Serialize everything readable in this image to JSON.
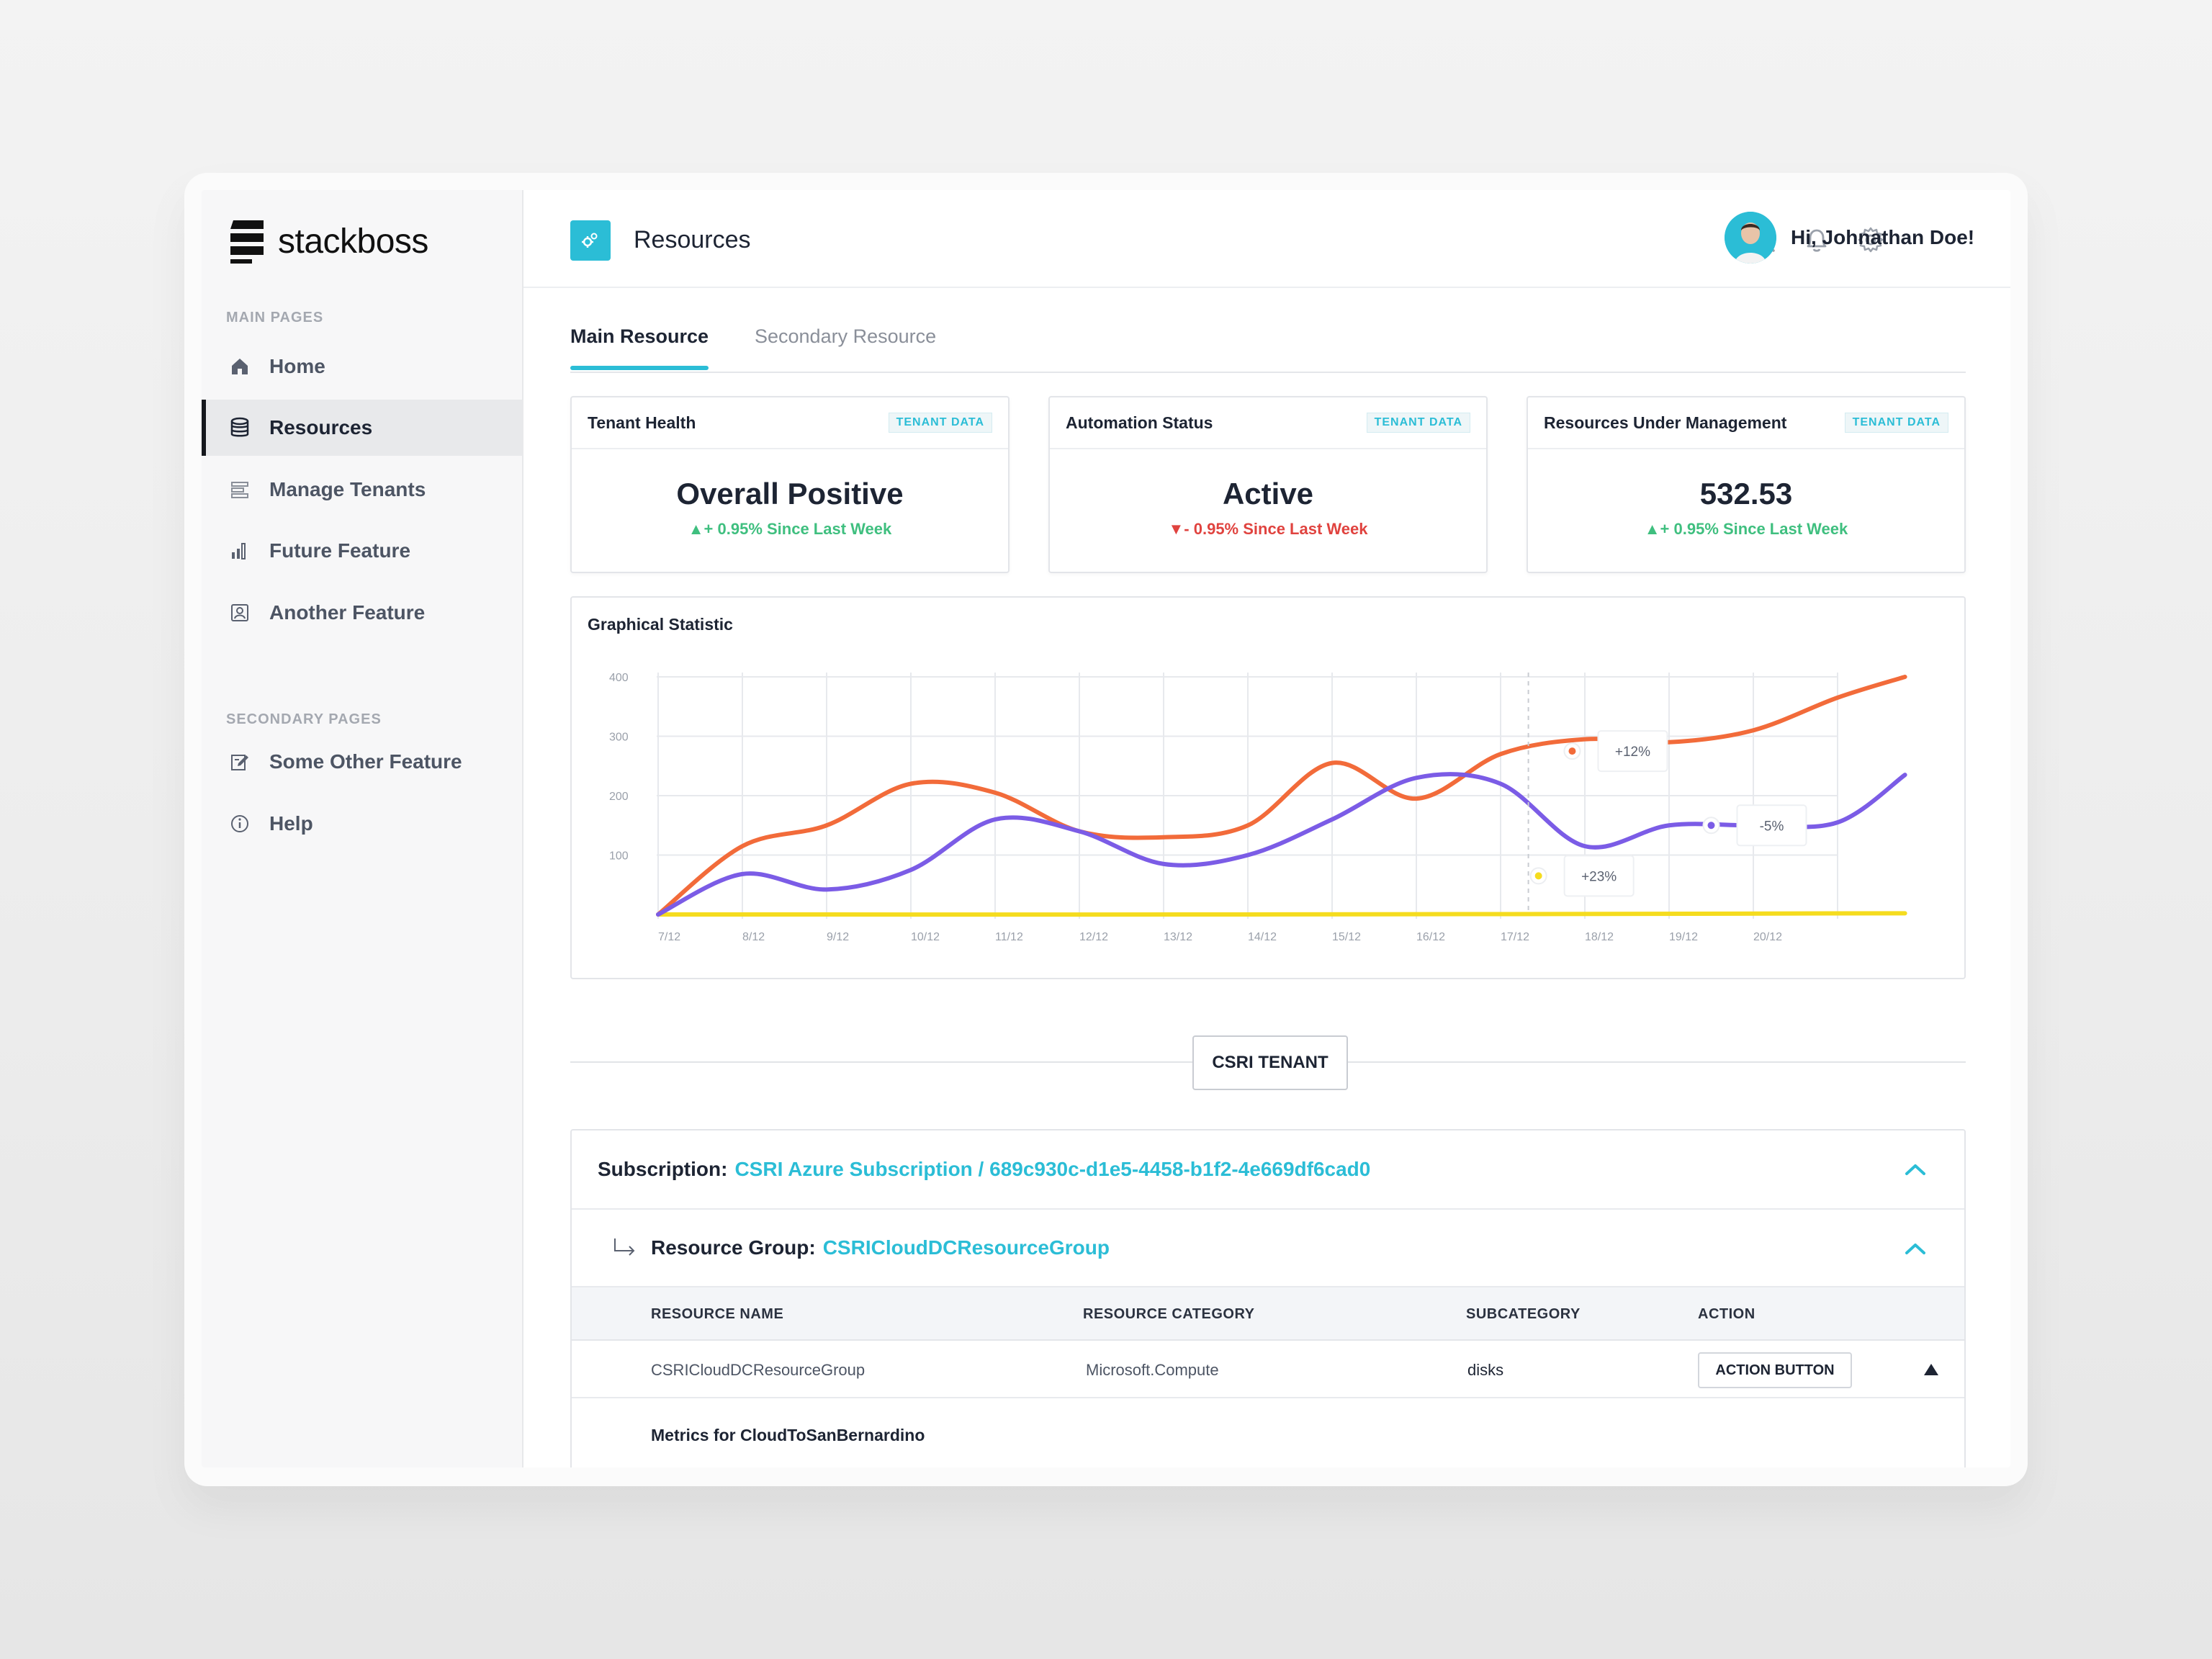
{
  "app": {
    "logo_text": "stackboss",
    "accent_color": "#2bbdd6"
  },
  "sidebar": {
    "main_label": "MAIN PAGES",
    "main_items": [
      {
        "label": "Home",
        "icon": "home-icon"
      },
      {
        "label": "Resources",
        "icon": "database-icon",
        "active": true
      },
      {
        "label": "Manage Tenants",
        "icon": "list-icon"
      },
      {
        "label": "Future Feature",
        "icon": "bar-chart-icon"
      },
      {
        "label": "Another Feature",
        "icon": "contact-card-icon"
      }
    ],
    "secondary_label": "SECONDARY PAGES",
    "secondary_items": [
      {
        "label": "Some Other Feature",
        "icon": "edit-icon"
      },
      {
        "label": "Help",
        "icon": "info-icon"
      }
    ]
  },
  "header": {
    "title": "Resources",
    "greeting": "Hi, Johnathan Doe!"
  },
  "tabs": [
    {
      "label": "Main Resource",
      "active": true
    },
    {
      "label": "Secondary Resource"
    }
  ],
  "cards": [
    {
      "title": "Tenant Health",
      "badge": "TENANT DATA",
      "value": "Overall Positive",
      "delta": "+ 0.95% Since Last Week",
      "trend": "up"
    },
    {
      "title": "Automation Status",
      "badge": "TENANT DATA",
      "value": "Active",
      "delta": "- 0.95% Since Last Week",
      "trend": "down"
    },
    {
      "title": "Resources Under Management",
      "badge": "TENANT DATA",
      "value": "532.53",
      "delta": "+ 0.95% Since Last Week",
      "trend": "up"
    }
  ],
  "chart_data": {
    "type": "line",
    "title": "Graphical Statistic",
    "categories": [
      "7/12",
      "8/12",
      "9/12",
      "10/12",
      "11/12",
      "12/12",
      "13/12",
      "14/12",
      "15/12",
      "16/12",
      "17/12",
      "18/12",
      "19/12",
      "20/12"
    ],
    "y_ticks": [
      100,
      200,
      300,
      400
    ],
    "ylim": [
      0,
      400
    ],
    "series": [
      {
        "name": "orange",
        "color": "#f26b3a",
        "x": [
          0,
          1,
          2,
          3,
          4,
          5,
          6,
          7,
          8,
          9,
          10,
          11,
          12,
          13,
          14,
          14.8
        ],
        "values": [
          0,
          115,
          150,
          220,
          205,
          140,
          130,
          150,
          255,
          195,
          270,
          295,
          290,
          310,
          365,
          400
        ]
      },
      {
        "name": "purple",
        "color": "#7b5ce6",
        "x": [
          0,
          1,
          2,
          3,
          4,
          5,
          6,
          7,
          8,
          9,
          10,
          11,
          12,
          13,
          14,
          14.8
        ],
        "values": [
          0,
          68,
          42,
          75,
          160,
          140,
          85,
          100,
          160,
          230,
          220,
          115,
          150,
          150,
          155,
          235
        ]
      },
      {
        "name": "yellow",
        "color": "#f5dc1e",
        "x": [
          0,
          7,
          14.8
        ],
        "values": [
          0,
          0,
          2
        ]
      }
    ],
    "annotations": [
      {
        "label": "+12%",
        "series": "orange",
        "x": 10.85,
        "y": 275
      },
      {
        "label": "-5%",
        "series": "purple",
        "x": 12.5,
        "y": 150
      },
      {
        "label": "+23%",
        "series": "yellow",
        "x": 10.45,
        "y": 65
      }
    ]
  },
  "tenant_button": "CSRI TENANT",
  "subscription": {
    "label": "Subscription:",
    "value": "CSRI Azure Subscription / 689c930c-d1e5-4458-b1f2-4e669df6cad0"
  },
  "resource_group": {
    "label": "Resource Group:",
    "value": "CSRICloudDCResourceGroup"
  },
  "table": {
    "headers": [
      "RESOURCE NAME",
      "RESOURCE CATEGORY",
      "SUBCATEGORY",
      "ACTION"
    ],
    "rows": [
      {
        "name": "CSRICloudDCResourceGroup",
        "category": "Microsoft.Compute",
        "subcategory": "disks",
        "action": "ACTION BUTTON"
      }
    ]
  },
  "metrics_title": "Metrics for CloudToSanBernardino"
}
